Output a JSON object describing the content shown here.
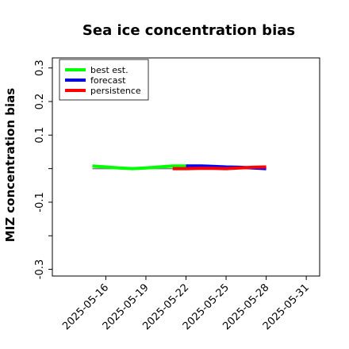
{
  "chart_data": {
    "type": "line",
    "title": "Sea ice concentration bias",
    "xlabel": "",
    "ylabel": "MIZ concentration bias",
    "xlim": [
      "2025-05-12",
      "2025-06-01"
    ],
    "ylim": [
      -0.32,
      0.33
    ],
    "xticks": [
      {
        "label": "2025-05-16",
        "value": "2025-05-16",
        "color": "#000000"
      },
      {
        "label": "2025-05-19",
        "value": "2025-05-19",
        "color": "#000000"
      },
      {
        "label": "2025-05-22",
        "value": "2025-05-22",
        "color": "#008000"
      },
      {
        "label": "2025-05-25",
        "value": "2025-05-25",
        "color": "#000000"
      },
      {
        "label": "2025-05-28",
        "value": "2025-05-28",
        "color": "#000000"
      },
      {
        "label": "2025-05-31",
        "value": "2025-05-31",
        "color": "#000000"
      }
    ],
    "yticks": [
      {
        "value": 0.3,
        "label": "0.3"
      },
      {
        "value": 0.2,
        "label": "0.2"
      },
      {
        "value": 0.1,
        "label": "0.1"
      },
      {
        "value": 0.0,
        "label": ""
      },
      {
        "value": -0.1,
        "label": "-0.1"
      },
      {
        "value": -0.2,
        "label": ""
      },
      {
        "value": -0.3,
        "label": "-0.3"
      }
    ],
    "zero_line": {
      "from": "2025-05-15",
      "to": "2025-05-28",
      "color": "#808080"
    },
    "series": [
      {
        "name": "best est.",
        "color": "#00ff00",
        "x": [
          "2025-05-15",
          "2025-05-16",
          "2025-05-17",
          "2025-05-18",
          "2025-05-19",
          "2025-05-20",
          "2025-05-21",
          "2025-05-22"
        ],
        "y": [
          0.008,
          0.005,
          0.002,
          0.0,
          0.002,
          0.005,
          0.008,
          0.008
        ]
      },
      {
        "name": "forecast",
        "color": "#0000ff",
        "x": [
          "2025-05-22",
          "2025-05-23",
          "2025-05-24",
          "2025-05-25",
          "2025-05-26",
          "2025-05-27",
          "2025-05-28"
        ],
        "y": [
          0.008,
          0.008,
          0.007,
          0.005,
          0.004,
          0.002,
          0.0
        ]
      },
      {
        "name": "persistence",
        "color": "#ff0000",
        "x": [
          "2025-05-21",
          "2025-05-22",
          "2025-05-23",
          "2025-05-24",
          "2025-05-25",
          "2025-05-26",
          "2025-05-27",
          "2025-05-28"
        ],
        "y": [
          0.0,
          0.0,
          0.001,
          0.001,
          0.0,
          0.002,
          0.004,
          0.005
        ]
      }
    ],
    "legend": {
      "position": "top-left"
    },
    "grid": false
  }
}
